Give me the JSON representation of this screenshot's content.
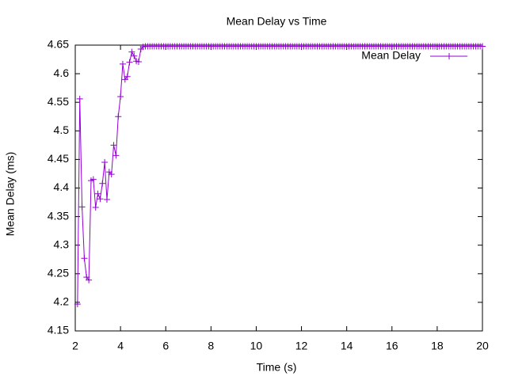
{
  "chart_data": {
    "type": "line",
    "title": "Mean Delay vs Time",
    "x_label": "Time (s)",
    "y_label": "Mean Delay (ms)",
    "x": [
      2.1,
      2.2,
      2.3,
      2.4,
      2.5,
      2.6,
      2.7,
      2.8,
      2.9,
      3.0,
      3.1,
      3.2,
      3.3,
      3.4,
      3.5,
      3.6,
      3.7,
      3.8,
      3.9,
      4.0,
      4.1,
      4.2,
      4.3,
      4.4,
      4.5,
      4.6,
      4.7,
      4.8,
      4.9,
      5.0,
      5.1,
      5.2,
      5.3,
      5.4,
      5.5,
      5.6,
      5.7,
      5.8,
      5.9,
      6.0,
      6.1,
      6.2,
      6.3,
      6.4,
      6.5,
      6.6,
      6.7,
      6.8,
      6.9,
      7.0,
      7.1,
      7.2,
      7.3,
      7.4,
      7.5,
      7.6,
      7.7,
      7.8,
      7.9,
      8.0,
      8.1,
      8.2,
      8.3,
      8.4,
      8.5,
      8.6,
      8.7,
      8.8,
      8.9,
      9.0,
      9.1,
      9.2,
      9.3,
      9.4,
      9.5,
      9.6,
      9.7,
      9.8,
      9.9,
      10.0,
      10.1,
      10.2,
      10.3,
      10.4,
      10.5,
      10.6,
      10.7,
      10.8,
      10.9,
      11.0,
      11.1,
      11.2,
      11.3,
      11.4,
      11.5,
      11.6,
      11.7,
      11.8,
      11.9,
      12.0,
      12.1,
      12.2,
      12.3,
      12.4,
      12.5,
      12.6,
      12.7,
      12.8,
      12.9,
      13.0,
      13.1,
      13.2,
      13.3,
      13.4,
      13.5,
      13.6,
      13.7,
      13.8,
      13.9,
      14.0,
      14.1,
      14.2,
      14.3,
      14.4,
      14.5,
      14.6,
      14.7,
      14.8,
      14.9,
      15.0,
      15.1,
      15.2,
      15.3,
      15.4,
      15.5,
      15.6,
      15.7,
      15.8,
      15.9,
      16.0,
      16.1,
      16.2,
      16.3,
      16.4,
      16.5,
      16.6,
      16.7,
      16.8,
      16.9,
      17.0,
      17.1,
      17.2,
      17.3,
      17.4,
      17.5,
      17.6,
      17.7,
      17.8,
      17.9,
      18.0,
      18.1,
      18.2,
      18.3,
      18.4,
      18.5,
      18.6,
      18.7,
      18.8,
      18.9,
      19.0,
      19.1,
      19.2,
      19.3,
      19.4,
      19.5,
      19.6,
      19.7,
      19.8,
      19.9,
      20.0
    ],
    "series": [
      {
        "name": "Mean Delay",
        "color": "#9400d3",
        "values": [
          4.197,
          4.556,
          4.367,
          4.277,
          4.244,
          4.239,
          4.413,
          4.415,
          4.366,
          4.39,
          4.381,
          4.408,
          4.445,
          4.38,
          4.428,
          4.424,
          4.475,
          4.457,
          4.525,
          4.56,
          4.617,
          4.59,
          4.595,
          4.62,
          4.638,
          4.631,
          4.622,
          4.621,
          4.643,
          4.647,
          4.648,
          4.648,
          4.648,
          4.648,
          4.648,
          4.648,
          4.648,
          4.648,
          4.648,
          4.648,
          4.648,
          4.648,
          4.648,
          4.648,
          4.648,
          4.648,
          4.648,
          4.648,
          4.648,
          4.648,
          4.648,
          4.648,
          4.648,
          4.648,
          4.648,
          4.648,
          4.648,
          4.648,
          4.648,
          4.648,
          4.648,
          4.648,
          4.648,
          4.648,
          4.648,
          4.648,
          4.648,
          4.648,
          4.648,
          4.648,
          4.648,
          4.648,
          4.648,
          4.648,
          4.648,
          4.648,
          4.648,
          4.648,
          4.648,
          4.648,
          4.648,
          4.648,
          4.648,
          4.648,
          4.648,
          4.648,
          4.648,
          4.648,
          4.648,
          4.648,
          4.648,
          4.648,
          4.648,
          4.648,
          4.648,
          4.648,
          4.648,
          4.648,
          4.648,
          4.648,
          4.648,
          4.648,
          4.648,
          4.648,
          4.648,
          4.648,
          4.648,
          4.648,
          4.648,
          4.648,
          4.648,
          4.648,
          4.648,
          4.648,
          4.648,
          4.648,
          4.648,
          4.648,
          4.648,
          4.648,
          4.648,
          4.648,
          4.648,
          4.648,
          4.648,
          4.648,
          4.648,
          4.648,
          4.648,
          4.648,
          4.648,
          4.648,
          4.648,
          4.648,
          4.648,
          4.648,
          4.648,
          4.648,
          4.648,
          4.648,
          4.648,
          4.648,
          4.648,
          4.648,
          4.648,
          4.648,
          4.648,
          4.648,
          4.648,
          4.648,
          4.648,
          4.648,
          4.648,
          4.648,
          4.648,
          4.648,
          4.648,
          4.648,
          4.648,
          4.648,
          4.648,
          4.648,
          4.648,
          4.648,
          4.648,
          4.648,
          4.648,
          4.648,
          4.648,
          4.648,
          4.648,
          4.648,
          4.648,
          4.648,
          4.648,
          4.648,
          4.648,
          4.648,
          4.648,
          4.648
        ]
      }
    ],
    "xlim": [
      2,
      20
    ],
    "xticks": [
      2,
      4,
      6,
      8,
      10,
      12,
      14,
      16,
      18,
      20
    ],
    "ylim": [
      4.15,
      4.65
    ],
    "yticks": [
      4.15,
      4.2,
      4.25,
      4.3,
      4.35,
      4.4,
      4.45,
      4.5,
      4.55,
      4.6,
      4.65
    ],
    "grid": false,
    "legend": "top-right"
  }
}
